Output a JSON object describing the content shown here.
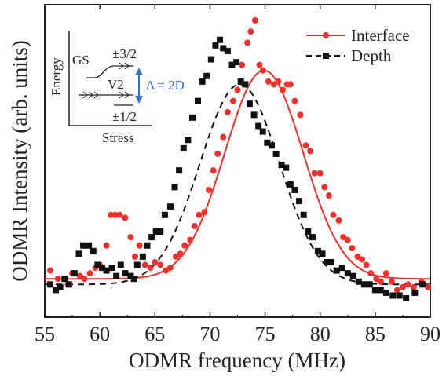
{
  "chart_data": {
    "type": "scatter",
    "xlabel": "ODMR frequency (MHz)",
    "ylabel": "ODMR Intensity (arb. units)",
    "xlim": [
      55,
      90
    ],
    "x_ticks": [
      "55",
      "60",
      "65",
      "70",
      "75",
      "80",
      "85",
      "90"
    ],
    "y_ticks_labeled": false,
    "series": [
      {
        "name": "Interface",
        "color": "#e8322e",
        "marker": "circle",
        "line": "solid",
        "points": [
          [
            55.5,
            0.1
          ],
          [
            56.2,
            0.07
          ],
          [
            57.1,
            0.05
          ],
          [
            57.5,
            0.09
          ],
          [
            58.2,
            0.08
          ],
          [
            58.6,
            0.07
          ],
          [
            59.1,
            0.09
          ],
          [
            59.6,
            0.11
          ],
          [
            60.0,
            0.12
          ],
          [
            60.6,
            0.19
          ],
          [
            61.0,
            0.3
          ],
          [
            61.4,
            0.3
          ],
          [
            61.8,
            0.3
          ],
          [
            62.3,
            0.29
          ],
          [
            62.8,
            0.22
          ],
          [
            63.2,
            0.15
          ],
          [
            63.6,
            0.19
          ],
          [
            64.1,
            0.12
          ],
          [
            64.6,
            0.11
          ],
          [
            65.0,
            0.13
          ],
          [
            65.5,
            0.12
          ],
          [
            66.0,
            0.1
          ],
          [
            66.4,
            0.11
          ],
          [
            66.9,
            0.15
          ],
          [
            67.3,
            0.16
          ],
          [
            67.7,
            0.19
          ],
          [
            68.2,
            0.21
          ],
          [
            68.6,
            0.26
          ],
          [
            69.0,
            0.3
          ],
          [
            69.5,
            0.31
          ],
          [
            69.9,
            0.39
          ],
          [
            70.3,
            0.46
          ],
          [
            70.7,
            0.52
          ],
          [
            71.2,
            0.58
          ],
          [
            71.6,
            0.67
          ],
          [
            72.1,
            0.71
          ],
          [
            72.5,
            0.75
          ],
          [
            72.9,
            0.84
          ],
          [
            73.4,
            0.92
          ],
          [
            73.7,
            0.96
          ],
          [
            74.1,
            1.0
          ],
          [
            74.5,
            0.84
          ],
          [
            74.8,
            0.82
          ],
          [
            75.3,
            0.78
          ],
          [
            75.8,
            0.77
          ],
          [
            76.2,
            0.78
          ],
          [
            76.6,
            0.75
          ],
          [
            77.0,
            0.77
          ],
          [
            77.3,
            0.77
          ],
          [
            77.7,
            0.71
          ],
          [
            78.2,
            0.66
          ],
          [
            78.7,
            0.55
          ],
          [
            79.1,
            0.53
          ],
          [
            79.5,
            0.45
          ],
          [
            80.0,
            0.45
          ],
          [
            80.4,
            0.4
          ],
          [
            80.8,
            0.37
          ],
          [
            81.2,
            0.3
          ],
          [
            81.7,
            0.28
          ],
          [
            82.1,
            0.22
          ],
          [
            82.5,
            0.21
          ],
          [
            82.9,
            0.18
          ],
          [
            83.4,
            0.15
          ],
          [
            83.8,
            0.14
          ],
          [
            84.2,
            0.12
          ],
          [
            84.6,
            0.09
          ],
          [
            85.1,
            0.07
          ],
          [
            85.5,
            0.06
          ],
          [
            86.0,
            0.09
          ],
          [
            86.5,
            0.06
          ],
          [
            87.0,
            0.03
          ],
          [
            87.5,
            0.04
          ],
          [
            88.0,
            0.05
          ],
          [
            88.5,
            0.04
          ],
          [
            89.2,
            0.06
          ],
          [
            89.8,
            0.04
          ]
        ],
        "fit": {
          "center": 74.9,
          "sigma": 3.55,
          "amplitude": 0.75,
          "baseline": 0.07
        }
      },
      {
        "name": "Depth",
        "color": "#111111",
        "marker": "square",
        "line": "dashed",
        "points": [
          [
            55.5,
            0.05
          ],
          [
            56.0,
            0.03
          ],
          [
            56.4,
            0.04
          ],
          [
            56.8,
            0.07
          ],
          [
            57.2,
            0.05
          ],
          [
            57.7,
            0.09
          ],
          [
            58.1,
            0.16
          ],
          [
            58.5,
            0.19
          ],
          [
            59.0,
            0.19
          ],
          [
            59.4,
            0.17
          ],
          [
            59.8,
            0.12
          ],
          [
            60.2,
            0.11
          ],
          [
            60.6,
            0.1
          ],
          [
            61.1,
            0.11
          ],
          [
            61.5,
            0.08
          ],
          [
            61.9,
            0.12
          ],
          [
            62.3,
            0.09
          ],
          [
            62.8,
            0.08
          ],
          [
            63.1,
            0.07
          ],
          [
            63.4,
            0.12
          ],
          [
            63.9,
            0.15
          ],
          [
            64.3,
            0.19
          ],
          [
            64.7,
            0.22
          ],
          [
            65.1,
            0.24
          ],
          [
            65.5,
            0.24
          ],
          [
            65.9,
            0.3
          ],
          [
            66.4,
            0.33
          ],
          [
            66.8,
            0.4
          ],
          [
            67.2,
            0.46
          ],
          [
            67.6,
            0.54
          ],
          [
            68.0,
            0.57
          ],
          [
            68.4,
            0.65
          ],
          [
            68.9,
            0.71
          ],
          [
            69.3,
            0.78
          ],
          [
            69.7,
            0.8
          ],
          [
            70.1,
            0.86
          ],
          [
            70.5,
            0.91
          ],
          [
            70.9,
            0.93
          ],
          [
            71.2,
            0.9
          ],
          [
            71.6,
            0.89
          ],
          [
            72.0,
            0.84
          ],
          [
            72.4,
            0.85
          ],
          [
            72.8,
            0.78
          ],
          [
            73.2,
            0.77
          ],
          [
            73.6,
            0.7
          ],
          [
            74.0,
            0.66
          ],
          [
            74.4,
            0.62
          ],
          [
            74.8,
            0.6
          ],
          [
            75.2,
            0.56
          ],
          [
            75.6,
            0.55
          ],
          [
            76.0,
            0.52
          ],
          [
            76.5,
            0.48
          ],
          [
            76.9,
            0.47
          ],
          [
            77.3,
            0.41
          ],
          [
            77.7,
            0.39
          ],
          [
            78.1,
            0.35
          ],
          [
            78.5,
            0.3
          ],
          [
            78.9,
            0.24
          ],
          [
            79.3,
            0.22
          ],
          [
            79.8,
            0.17
          ],
          [
            80.2,
            0.16
          ],
          [
            80.6,
            0.13
          ],
          [
            81.0,
            0.13
          ],
          [
            81.5,
            0.1
          ],
          [
            82.0,
            0.11
          ],
          [
            82.5,
            0.09
          ],
          [
            83.0,
            0.08
          ],
          [
            83.5,
            0.06
          ],
          [
            84.0,
            0.05
          ],
          [
            84.5,
            0.05
          ],
          [
            85.0,
            0.03
          ],
          [
            85.5,
            0.03
          ],
          [
            86.0,
            0.02
          ],
          [
            86.6,
            0.01
          ],
          [
            87.2,
            0.01
          ],
          [
            87.8,
            0.0
          ],
          [
            88.6,
            0.02
          ],
          [
            89.3,
            0.05
          ]
        ],
        "fit": {
          "center": 72.7,
          "sigma": 3.6,
          "amplitude": 0.72,
          "baseline": 0.05
        }
      }
    ],
    "legend": {
      "placement": "top-right",
      "entries": [
        "Interface",
        "Depth"
      ]
    },
    "inset": {
      "y_axis_label": "Energy",
      "x_axis_label": "Stress",
      "gs_label": "GS",
      "upper_level_label": "±3/2",
      "lower_level_label": "±1/2",
      "center_label": "V2",
      "splitting_label": "Δ = 2D",
      "splitting_color": "#3a6fc4"
    }
  }
}
